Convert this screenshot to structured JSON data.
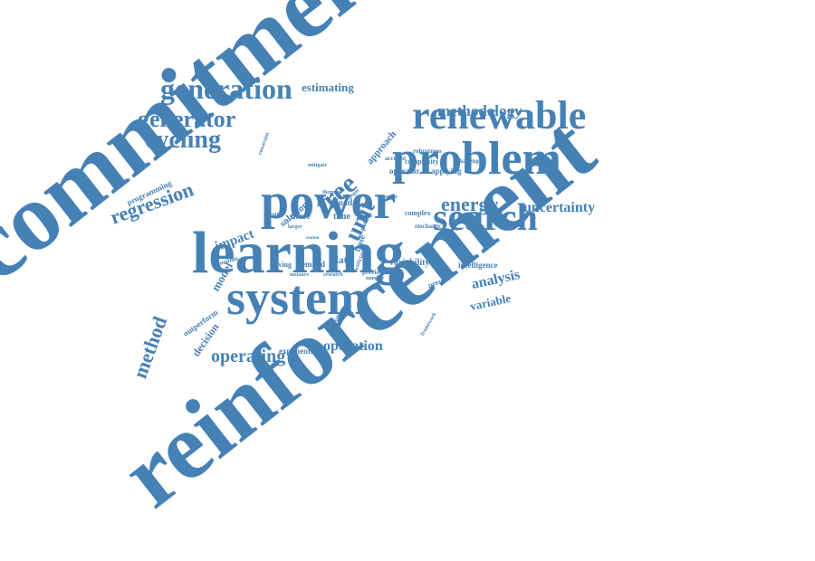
{
  "colors": {
    "text": "#4681b5",
    "background": "#ffffff"
  },
  "words": [
    "commitment",
    "reinforcement",
    "learning",
    "power",
    "system",
    "problem",
    "renewable",
    "search",
    "unit",
    "tree",
    "generation",
    "generator",
    "cycling",
    "regression",
    "method",
    "operating",
    "operation",
    "energy",
    "uncertainty",
    "methodology",
    "analysis",
    "variable",
    "estimating",
    "impact",
    "model",
    "decision",
    "outperform",
    "exponential",
    "data",
    "demand",
    "solving",
    "variability",
    "approach",
    "operator",
    "applying",
    "complexity",
    "challenge",
    "account",
    "robustness",
    "intelligence",
    "present",
    "previous",
    "complex",
    "stochastic",
    "algorithm",
    "programming",
    "solution",
    "more",
    "time",
    "load",
    "base",
    "plant",
    "integer",
    "thermal",
    "mitigate",
    "constraint",
    "source",
    "instance",
    "research",
    "framework",
    "reduction",
    "larger",
    "number",
    "space",
    "artificial",
    "station"
  ]
}
